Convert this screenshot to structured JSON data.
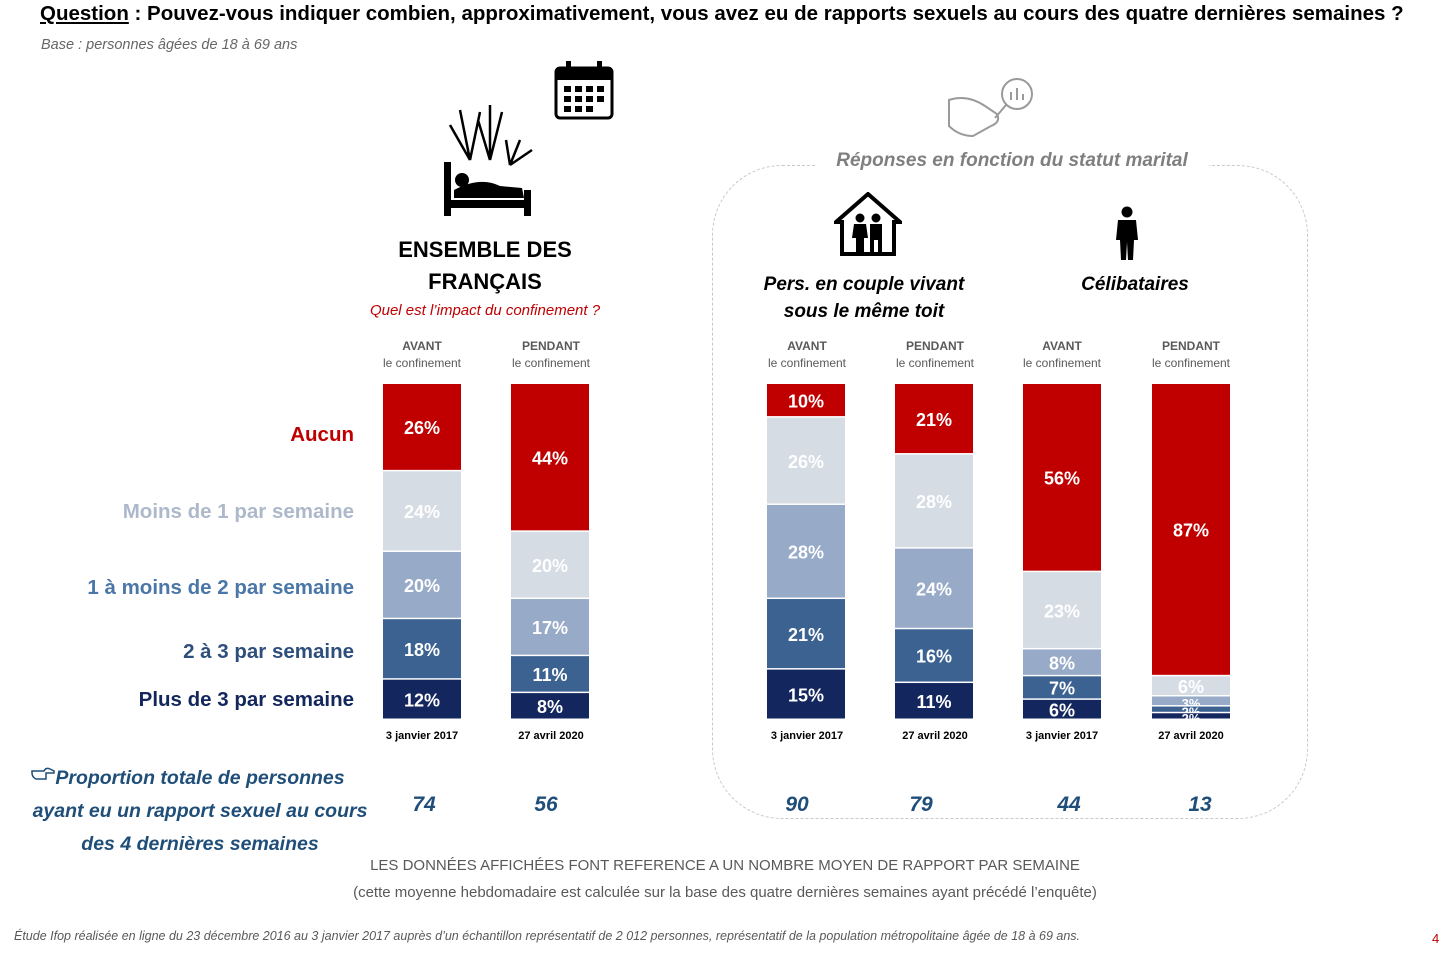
{
  "question": {
    "label": "Question",
    "text": " : Pouvez-vous indiquer combien, approximativement, vous avez eu de rapports sexuels au cours des quatre dernières semaines ?"
  },
  "base": "Base : personnes âgées de 18 à 69 ans",
  "ensemble": {
    "title_line1": "ENSEMBLE DES",
    "title_line2": "FRANÇAIS",
    "subtitle": "Quel est l’impact du confinement ?"
  },
  "panel": {
    "title": "Réponses en fonction du statut marital",
    "group1_line1": "Pers. en couple vivant",
    "group1_line2": "sous le même toit",
    "group2": "Célibataires"
  },
  "phase_labels": {
    "avant": "AVANT",
    "pendant": "PENDANT",
    "sub": "le confinement"
  },
  "dates": {
    "d1": "3 janvier 2017",
    "d2": "27 avril 2020"
  },
  "proportion_label": {
    "line1": "Proportion totale de personnes",
    "line2": "ayant eu un rapport sexuel au cours",
    "line3": "des 4 dernières semaines"
  },
  "notes": {
    "line1": "LES DONNÉES AFFICHÉES FONT REFERENCE A UN NOMBRE MOYEN DE RAPPORT PAR SEMAINE",
    "line2": "(cette moyenne hebdomadaire est calculée sur la base des quatre dernières semaines ayant précédé l’enquête)"
  },
  "source": "Étude Ifop réalisée en ligne du 23 décembre 2016 au 3 janvier 2017 auprès d’un échantillon représentatif de 2 012 personnes, représentatif de la population métropolitaine âgée de 18 à 69 ans.",
  "page_number": "4",
  "icons": [
    "bed-fireworks-icon",
    "calendar-icon",
    "hand-magnifier-icon",
    "family-house-icon",
    "single-person-icon",
    "pointing-hand-icon"
  ],
  "chart_data": {
    "type": "bar",
    "stacked": true,
    "unit": "%",
    "categories": [
      "Aucun",
      "Moins de 1 par semaine",
      "1 à moins de 2 par semaine",
      "2 à 3 par semaine",
      "Plus de 3 par semaine"
    ],
    "category_colors": [
      "#c00000",
      "#d6dce4",
      "#97aac8",
      "#3c6291",
      "#13265e"
    ],
    "category_label_colors": [
      "#c00000",
      "#adb9ca",
      "#4a76a8",
      "#2e4f7c",
      "#14275c"
    ],
    "bars": [
      {
        "phase": "AVANT",
        "date": "3 janvier 2017",
        "values": [
          26,
          24,
          20,
          18,
          12
        ],
        "labels": [
          "26%",
          "24%",
          "20%",
          "18%",
          "12%"
        ],
        "total": "74"
      },
      {
        "phase": "PENDANT",
        "date": "27 avril 2020",
        "values": [
          44,
          20,
          17,
          11,
          8
        ],
        "labels": [
          "44%",
          "20%",
          "17%",
          "11%",
          "8%"
        ],
        "total": "56"
      },
      {
        "group": "Pers. en couple vivant sous le même toit",
        "phase": "AVANT",
        "date": "3 janvier 2017",
        "values": [
          10,
          26,
          28,
          21,
          15
        ],
        "labels": [
          "10%",
          "26%",
          "28%",
          "21%",
          "15%"
        ],
        "total": "90"
      },
      {
        "group": "Pers. en couple vivant sous le même toit",
        "phase": "PENDANT",
        "date": "27 avril 2020",
        "values": [
          21,
          28,
          24,
          16,
          11
        ],
        "labels": [
          "21%",
          "28%",
          "24%",
          "16%",
          "11%"
        ],
        "total": "79"
      },
      {
        "group": "Célibataires",
        "phase": "AVANT",
        "date": "3 janvier 2017",
        "values": [
          56,
          23,
          8,
          7,
          6
        ],
        "labels": [
          "56%",
          "23%",
          "8%",
          "7%",
          "6%"
        ],
        "total": "44"
      },
      {
        "group": "Célibataires",
        "phase": "PENDANT",
        "date": "27 avril 2020",
        "values": [
          87,
          6,
          3,
          2,
          2
        ],
        "labels": [
          "87%",
          "6%",
          "3%",
          "2%",
          "2%"
        ],
        "total": "13"
      }
    ]
  }
}
